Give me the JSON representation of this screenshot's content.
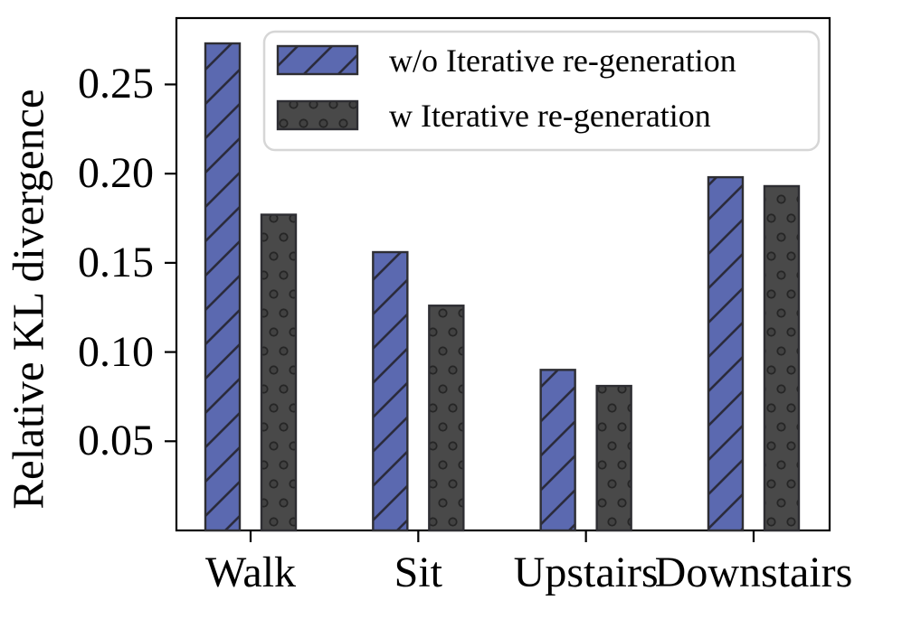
{
  "figure": {
    "background_color": "#ffffff",
    "axis_color": "#000000",
    "legend": {
      "border_color": "#d6d6d6",
      "swatches": [
        "blue-diagonal-hatch-swatch",
        "gray-dot-hatch-swatch"
      ]
    }
  },
  "chart_data": {
    "type": "bar",
    "title": "",
    "xlabel": "",
    "ylabel": "Relative KL divergence",
    "categories": [
      "Walk",
      "Sit",
      "Upstairs",
      "Downstairs"
    ],
    "series": [
      {
        "name": "w/o Iterative re-generation",
        "values": [
          0.273,
          0.156,
          0.09,
          0.198
        ],
        "fill": "#5b69b0",
        "hatch": "/",
        "hatch_color": "#2b2b3c",
        "edge_color": "#2e2e33"
      },
      {
        "name": "w Iterative re-generation",
        "values": [
          0.177,
          0.126,
          0.081,
          0.193
        ],
        "fill": "#494949",
        "hatch": "o",
        "hatch_color": "#262626",
        "dot_fill": "#424242",
        "edge_color": "#2e2e33"
      }
    ],
    "ylim": [
      0,
      0.2872
    ],
    "yticks": [
      0.05,
      0.1,
      0.15,
      0.2,
      0.25
    ],
    "ytick_labels": [
      "0.05",
      "0.10",
      "0.15",
      "0.20",
      "0.25"
    ],
    "grid": false,
    "legend_position": "upper right inside"
  }
}
